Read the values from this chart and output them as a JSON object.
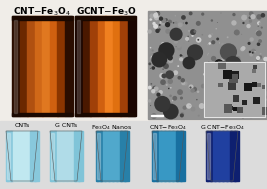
{
  "title_left": "CNT–Fe₃O₄",
  "title_right": "GCNT–Fe₃O",
  "bottom_labels": [
    "CNTs",
    "G CNTs",
    "Fe₃O₄ Nanos",
    "CNT–Fe₃O₄",
    "G CNT–Fe₃O₄"
  ],
  "title_fontsize": 6.5,
  "sub_fontsize": 4.5,
  "vial1_strips": [
    "#2a0d00",
    "#6b2800",
    "#b05010",
    "#d06818",
    "#e07820",
    "#d06010",
    "#8b3500",
    "#2a0d00"
  ],
  "vial2_strips": [
    "#1a0500",
    "#4a1800",
    "#a04008",
    "#d06010",
    "#f08020",
    "#e07010",
    "#a04008",
    "#1a0500"
  ],
  "bottom_vials": [
    {
      "light": "#c0e8f0",
      "dark": "#88c8dc"
    },
    {
      "light": "#b0dce8",
      "dark": "#80c4d8"
    },
    {
      "light": "#50a8cc",
      "dark": "#2880a8"
    },
    {
      "light": "#3898c4",
      "dark": "#1870a0"
    },
    {
      "light": "#2040a0",
      "dark": "#0e2070"
    }
  ],
  "tem_bg": "#909090",
  "inset_bg": "#aaaaaa",
  "scale_bar_color": "#ffffff"
}
